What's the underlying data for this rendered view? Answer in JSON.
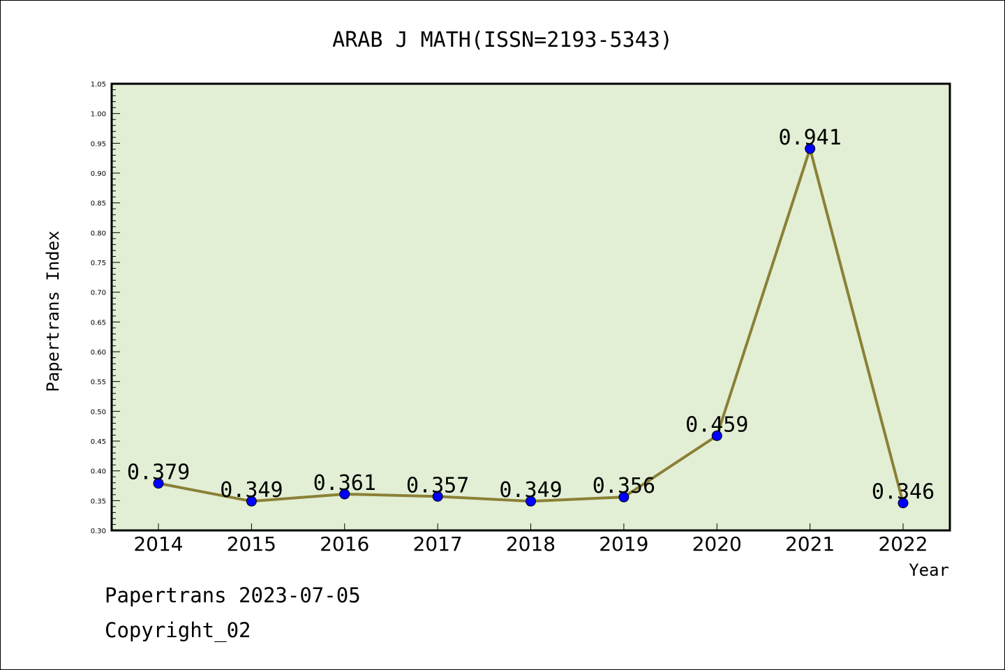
{
  "chart_data": {
    "type": "line",
    "title": "ARAB J MATH(ISSN=2193-5343)",
    "xlabel": "Year",
    "ylabel": "Papertrans Index",
    "categories": [
      "2014",
      "2015",
      "2016",
      "2017",
      "2018",
      "2019",
      "2020",
      "2021",
      "2022"
    ],
    "series": [
      {
        "values": [
          0.379,
          0.349,
          0.361,
          0.357,
          0.349,
          0.356,
          0.459,
          0.941,
          0.346
        ],
        "data_labels": [
          "0.379",
          "0.349",
          "0.361",
          "0.357",
          "0.349",
          "0.356",
          "0.459",
          "0.941",
          "0.346"
        ],
        "line_color": "#8b8036",
        "marker_color": "#0000ff"
      }
    ],
    "ylim": [
      0.3,
      1.05
    ],
    "yticks": [
      "0.30",
      "0.35",
      "0.40",
      "0.45",
      "0.50",
      "0.55",
      "0.60",
      "0.65",
      "0.70",
      "0.75",
      "0.80",
      "0.85",
      "0.90",
      "0.95",
      "1.00",
      "1.05"
    ],
    "plot_background": "#e2efd5",
    "grid": false,
    "legend": "none"
  },
  "footer": {
    "date_line": "Papertrans 2023-07-05",
    "copyright_line": "Copyright_02"
  }
}
